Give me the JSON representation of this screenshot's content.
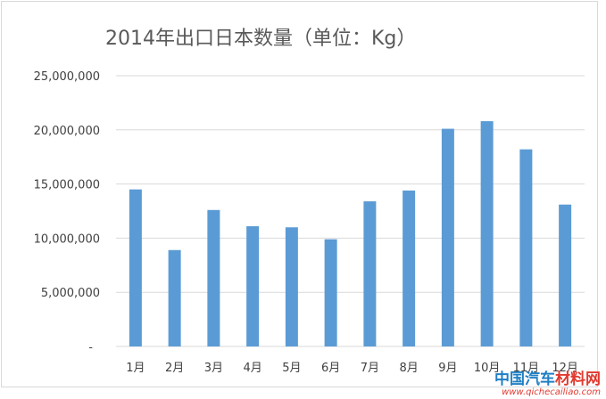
{
  "chart_data": {
    "type": "bar",
    "title": "2014年出口日本数量（单位：Kg）",
    "categories": [
      "1月",
      "2月",
      "3月",
      "4月",
      "5月",
      "6月",
      "7月",
      "8月",
      "9月",
      "10月",
      "11月",
      "12月"
    ],
    "values": [
      14500000,
      8900000,
      12600000,
      11100000,
      11000000,
      9900000,
      13400000,
      14400000,
      20100000,
      20800000,
      18200000,
      13100000
    ],
    "ylim": [
      0,
      25000000
    ],
    "yticks": [
      0,
      5000000,
      10000000,
      15000000,
      20000000,
      25000000
    ],
    "ytick_labels": [
      "-",
      "5,000,000",
      "10,000,000",
      "15,000,000",
      "20,000,000",
      "25,000,000"
    ],
    "xlabel": "",
    "ylabel": "",
    "grid": true,
    "legend": "none",
    "bar_color": "#5b9bd5",
    "grid_color": "#d9d9d9"
  },
  "watermark": {
    "name_part1": "中国汽车",
    "name_part2": "材料网",
    "url": "www.qichecailiao.com"
  }
}
